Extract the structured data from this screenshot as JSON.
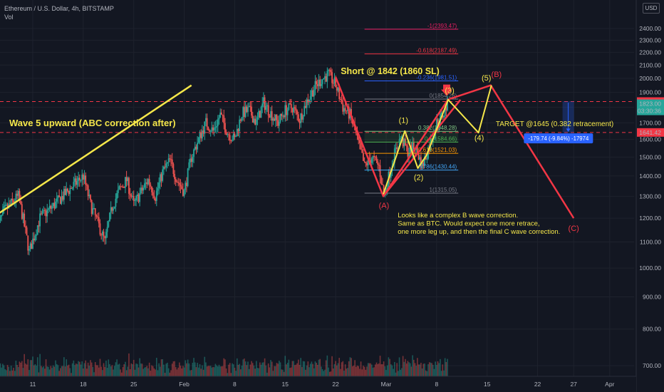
{
  "header": {
    "symbol": "Ethereum / U.S. Dollar, 4h, BITSTAMP",
    "indicator": "Vol",
    "currency": "USD"
  },
  "chart_data": {
    "type": "candlestick",
    "ylim": [
      640,
      2480
    ],
    "price_ticks": [
      700,
      800,
      900,
      1000,
      1100,
      1200,
      1300,
      1400,
      1500,
      1600,
      1700,
      1800,
      1900,
      2000,
      2100,
      2200,
      2300,
      2400
    ],
    "price_tick_labels": [
      "700.00",
      "800.00",
      "900.00",
      "1000.00",
      "1100.00",
      "1200.00",
      "1300.00",
      "1400.00",
      "1500.00",
      "1600.00",
      "1700.00",
      "1800.00",
      "1900.00",
      "2000.00",
      "2100.00",
      "2200.00",
      "2300.00",
      "2400.00"
    ],
    "time_ticks": [
      {
        "label": "11",
        "day": 11
      },
      {
        "label": "18",
        "day": 18
      },
      {
        "label": "25",
        "day": 25
      },
      {
        "label": "Feb",
        "day": 32
      },
      {
        "label": "8",
        "day": 39
      },
      {
        "label": "15",
        "day": 46
      },
      {
        "label": "22",
        "day": 53
      },
      {
        "label": "Mar",
        "day": 60
      },
      {
        "label": "8",
        "day": 67
      },
      {
        "label": "15",
        "day": 74
      },
      {
        "label": "22",
        "day": 81
      },
      {
        "label": "27",
        "day": 86
      },
      {
        "label": "Apr",
        "day": 91
      }
    ],
    "price_path": [
      [
        6,
        1150
      ],
      [
        7,
        1230
      ],
      [
        9,
        1300
      ],
      [
        10.5,
        1060
      ],
      [
        12,
        1200
      ],
      [
        14,
        1260
      ],
      [
        16,
        1330
      ],
      [
        18,
        1400
      ],
      [
        19,
        1260
      ],
      [
        20,
        1180
      ],
      [
        21,
        1100
      ],
      [
        22,
        1250
      ],
      [
        23,
        1330
      ],
      [
        24,
        1380
      ],
      [
        25,
        1260
      ],
      [
        26,
        1320
      ],
      [
        27,
        1380
      ],
      [
        28,
        1300
      ],
      [
        29,
        1420
      ],
      [
        30,
        1480
      ],
      [
        31,
        1380
      ],
      [
        32,
        1320
      ],
      [
        33,
        1500
      ],
      [
        34,
        1600
      ],
      [
        35,
        1700
      ],
      [
        36,
        1650
      ],
      [
        37,
        1750
      ],
      [
        38,
        1640
      ],
      [
        39,
        1600
      ],
      [
        40,
        1760
      ],
      [
        41,
        1780
      ],
      [
        42,
        1700
      ],
      [
        43,
        1830
      ],
      [
        44,
        1760
      ],
      [
        45,
        1700
      ],
      [
        46,
        1780
      ],
      [
        47,
        1800
      ],
      [
        48,
        1720
      ],
      [
        49,
        1840
      ],
      [
        50,
        1930
      ],
      [
        51,
        1990
      ],
      [
        52,
        2030
      ],
      [
        53,
        1950
      ],
      [
        54,
        1800
      ],
      [
        55,
        1750
      ],
      [
        56,
        1600
      ],
      [
        57,
        1450
      ],
      [
        58,
        1500
      ],
      [
        59,
        1450
      ],
      [
        59.7,
        1300
      ],
      [
        60.5,
        1420
      ],
      [
        61,
        1500
      ],
      [
        62,
        1610
      ],
      [
        63,
        1530
      ],
      [
        64,
        1560
      ],
      [
        65,
        1450
      ],
      [
        66,
        1560
      ],
      [
        67,
        1700
      ],
      [
        68,
        1760
      ],
      [
        68.5,
        1823
      ]
    ],
    "current_price": "1823.00",
    "countdown": "03:30:36",
    "level_lines": [
      {
        "price": 1837.61,
        "label": "1837.61",
        "color": "#f23645"
      },
      {
        "price": 1641.42,
        "label": "1641.42",
        "color": "#f23645"
      }
    ],
    "fib_levels": [
      {
        "price": 2393.47,
        "label": "-1(2393.47)",
        "color": "#e91e63",
        "x0": 57,
        "x1": 70
      },
      {
        "price": 2187.49,
        "label": "-0.618(2187.49)",
        "color": "#f23645",
        "x0": 57,
        "x1": 70
      },
      {
        "price": 1981.51,
        "label": "-0.236(1981.51)",
        "color": "#2962ff",
        "x0": 57,
        "x1": 70
      },
      {
        "price": 1854.26,
        "label": "0(1854.26)",
        "color": "#787b86",
        "x0": 57,
        "x1": 70
      },
      {
        "price": 1648.28,
        "label": "0.382(1648.28)",
        "color": "#81c784",
        "x0": 57,
        "x1": 70
      },
      {
        "price": 1584.66,
        "label": "0.5(1584.66)",
        "color": "#4caf50",
        "x0": 57,
        "x1": 70
      },
      {
        "price": 1521.03,
        "label": "0.618(1521.03)",
        "color": "#ff9800",
        "x0": 57,
        "x1": 70
      },
      {
        "price": 1430.44,
        "label": "0.786(1430.44)",
        "color": "#42a5f5",
        "x0": 57,
        "x1": 70
      },
      {
        "price": 1315.05,
        "label": "1(1315.05)",
        "color": "#787b86",
        "x0": 57,
        "x1": 70
      }
    ],
    "trendline": {
      "points": [
        [
          6,
          1215
        ],
        [
          33,
          1950
        ]
      ],
      "color": "#f5e74a"
    },
    "red_path": {
      "points": [
        [
          53,
          2010
        ],
        [
          59.6,
          1300
        ],
        [
          68.6,
          1852
        ],
        [
          74.5,
          1950
        ],
        [
          86,
          1200
        ]
      ],
      "color": "#f23645"
    },
    "red_channel": {
      "points": [
        [
          59.6,
          1300
        ],
        [
          70.3,
          1850
        ]
      ],
      "color": "#f23645"
    },
    "yellow_path": {
      "points": [
        [
          59.6,
          1310
        ],
        [
          62.6,
          1650
        ],
        [
          64.4,
          1440
        ],
        [
          65.6,
          1510
        ],
        [
          68.6,
          1850
        ],
        [
          72.8,
          1640
        ],
        [
          74.6,
          1950
        ]
      ],
      "color": "#f5e74a"
    },
    "wave_labels": [
      {
        "text": "(1)",
        "x": 62.4,
        "y": 1700,
        "color": "#f5e74a"
      },
      {
        "text": "(2)",
        "x": 64.5,
        "y": 1380,
        "color": "#f5e74a"
      },
      {
        "text": "(3)",
        "x": 68.8,
        "y": 1895,
        "color": "#f5e74a"
      },
      {
        "text": "(4)",
        "x": 72.9,
        "y": 1595,
        "color": "#f5e74a"
      },
      {
        "text": "(5)",
        "x": 73.9,
        "y": 1985,
        "color": "#f5e74a"
      },
      {
        "text": "(A)",
        "x": 59.7,
        "y": 1245,
        "color": "#f23645"
      },
      {
        "text": "(B)",
        "x": 75.3,
        "y": 2010,
        "color": "#f23645"
      },
      {
        "text": "(C)",
        "x": 86,
        "y": 1145,
        "color": "#f23645"
      }
    ],
    "annotations": {
      "wave5": "Wave 5 upward (ABC correction after)",
      "short": "Short @ 1842 (1860 SL)",
      "target": "TARGET @1645 (0.382 retracement)",
      "measure": "-179.74 (-9.84%) -17974",
      "note_lines": [
        "Looks like a complex B wave correction.",
        "Same as BTC. Would expect one more retrace,",
        "one more leg up, and then the final C wave correction."
      ]
    },
    "colors": {
      "up": "#26a69a",
      "down": "#ef5350",
      "grid": "#1e222d",
      "bg": "#131722",
      "yellow": "#f5e74a",
      "red": "#f23645",
      "blue": "#2962ff"
    }
  }
}
